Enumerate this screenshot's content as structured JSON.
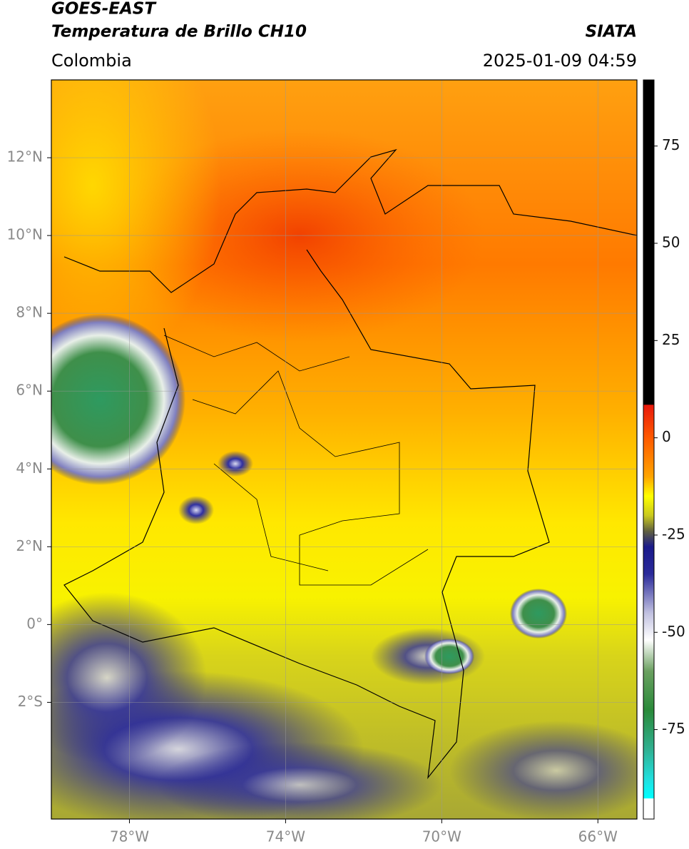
{
  "header": {
    "title": "GOES-EAST",
    "subtitle": "Temperatura de Brillo CH10",
    "source": "SIATA",
    "region": "Colombia",
    "datetime": "2025-01-09 04:59"
  },
  "map": {
    "xlim": [
      -80,
      -65
    ],
    "ylim": [
      -5,
      14
    ],
    "xticks": [
      {
        "value": -78,
        "label": "78°W"
      },
      {
        "value": -74,
        "label": "74°W"
      },
      {
        "value": -70,
        "label": "70°W"
      },
      {
        "value": -66,
        "label": "66°W"
      }
    ],
    "yticks": [
      {
        "value": 12,
        "label": "12°N"
      },
      {
        "value": 10,
        "label": "10°N"
      },
      {
        "value": 8,
        "label": "8°N"
      },
      {
        "value": 6,
        "label": "6°N"
      },
      {
        "value": 4,
        "label": "4°N"
      },
      {
        "value": 2,
        "label": "2°N"
      },
      {
        "value": 0,
        "label": "0°"
      },
      {
        "value": -2,
        "label": "2°S"
      }
    ],
    "grid": true
  },
  "colorbar": {
    "lim": [
      -98,
      92
    ],
    "ticks": [
      75,
      50,
      25,
      0,
      -25,
      -50,
      -75
    ],
    "colors": [
      {
        "value": 92,
        "color": "#000000"
      },
      {
        "value": 8.6,
        "color": "#000000"
      },
      {
        "value": 8.4,
        "color": "#e8190c"
      },
      {
        "value": 0,
        "color": "#ff5a00"
      },
      {
        "value": -10,
        "color": "#ffa500"
      },
      {
        "value": -15,
        "color": "#ffff00"
      },
      {
        "value": -20,
        "color": "#c9c91e"
      },
      {
        "value": -24,
        "color": "#606040"
      },
      {
        "value": -28,
        "color": "#1a1a8a"
      },
      {
        "value": -35,
        "color": "#2a2a9a"
      },
      {
        "value": -45,
        "color": "#c0c0e0"
      },
      {
        "value": -52,
        "color": "#ffffff"
      },
      {
        "value": -60,
        "color": "#6aa060"
      },
      {
        "value": -70,
        "color": "#2a8a3a"
      },
      {
        "value": -80,
        "color": "#30b090"
      },
      {
        "value": -88,
        "color": "#20e0e0"
      },
      {
        "value": -92.6,
        "color": "#00ffff"
      },
      {
        "value": -92.8,
        "color": "#ffffff"
      },
      {
        "value": -98,
        "color": "#ffffff"
      }
    ]
  }
}
